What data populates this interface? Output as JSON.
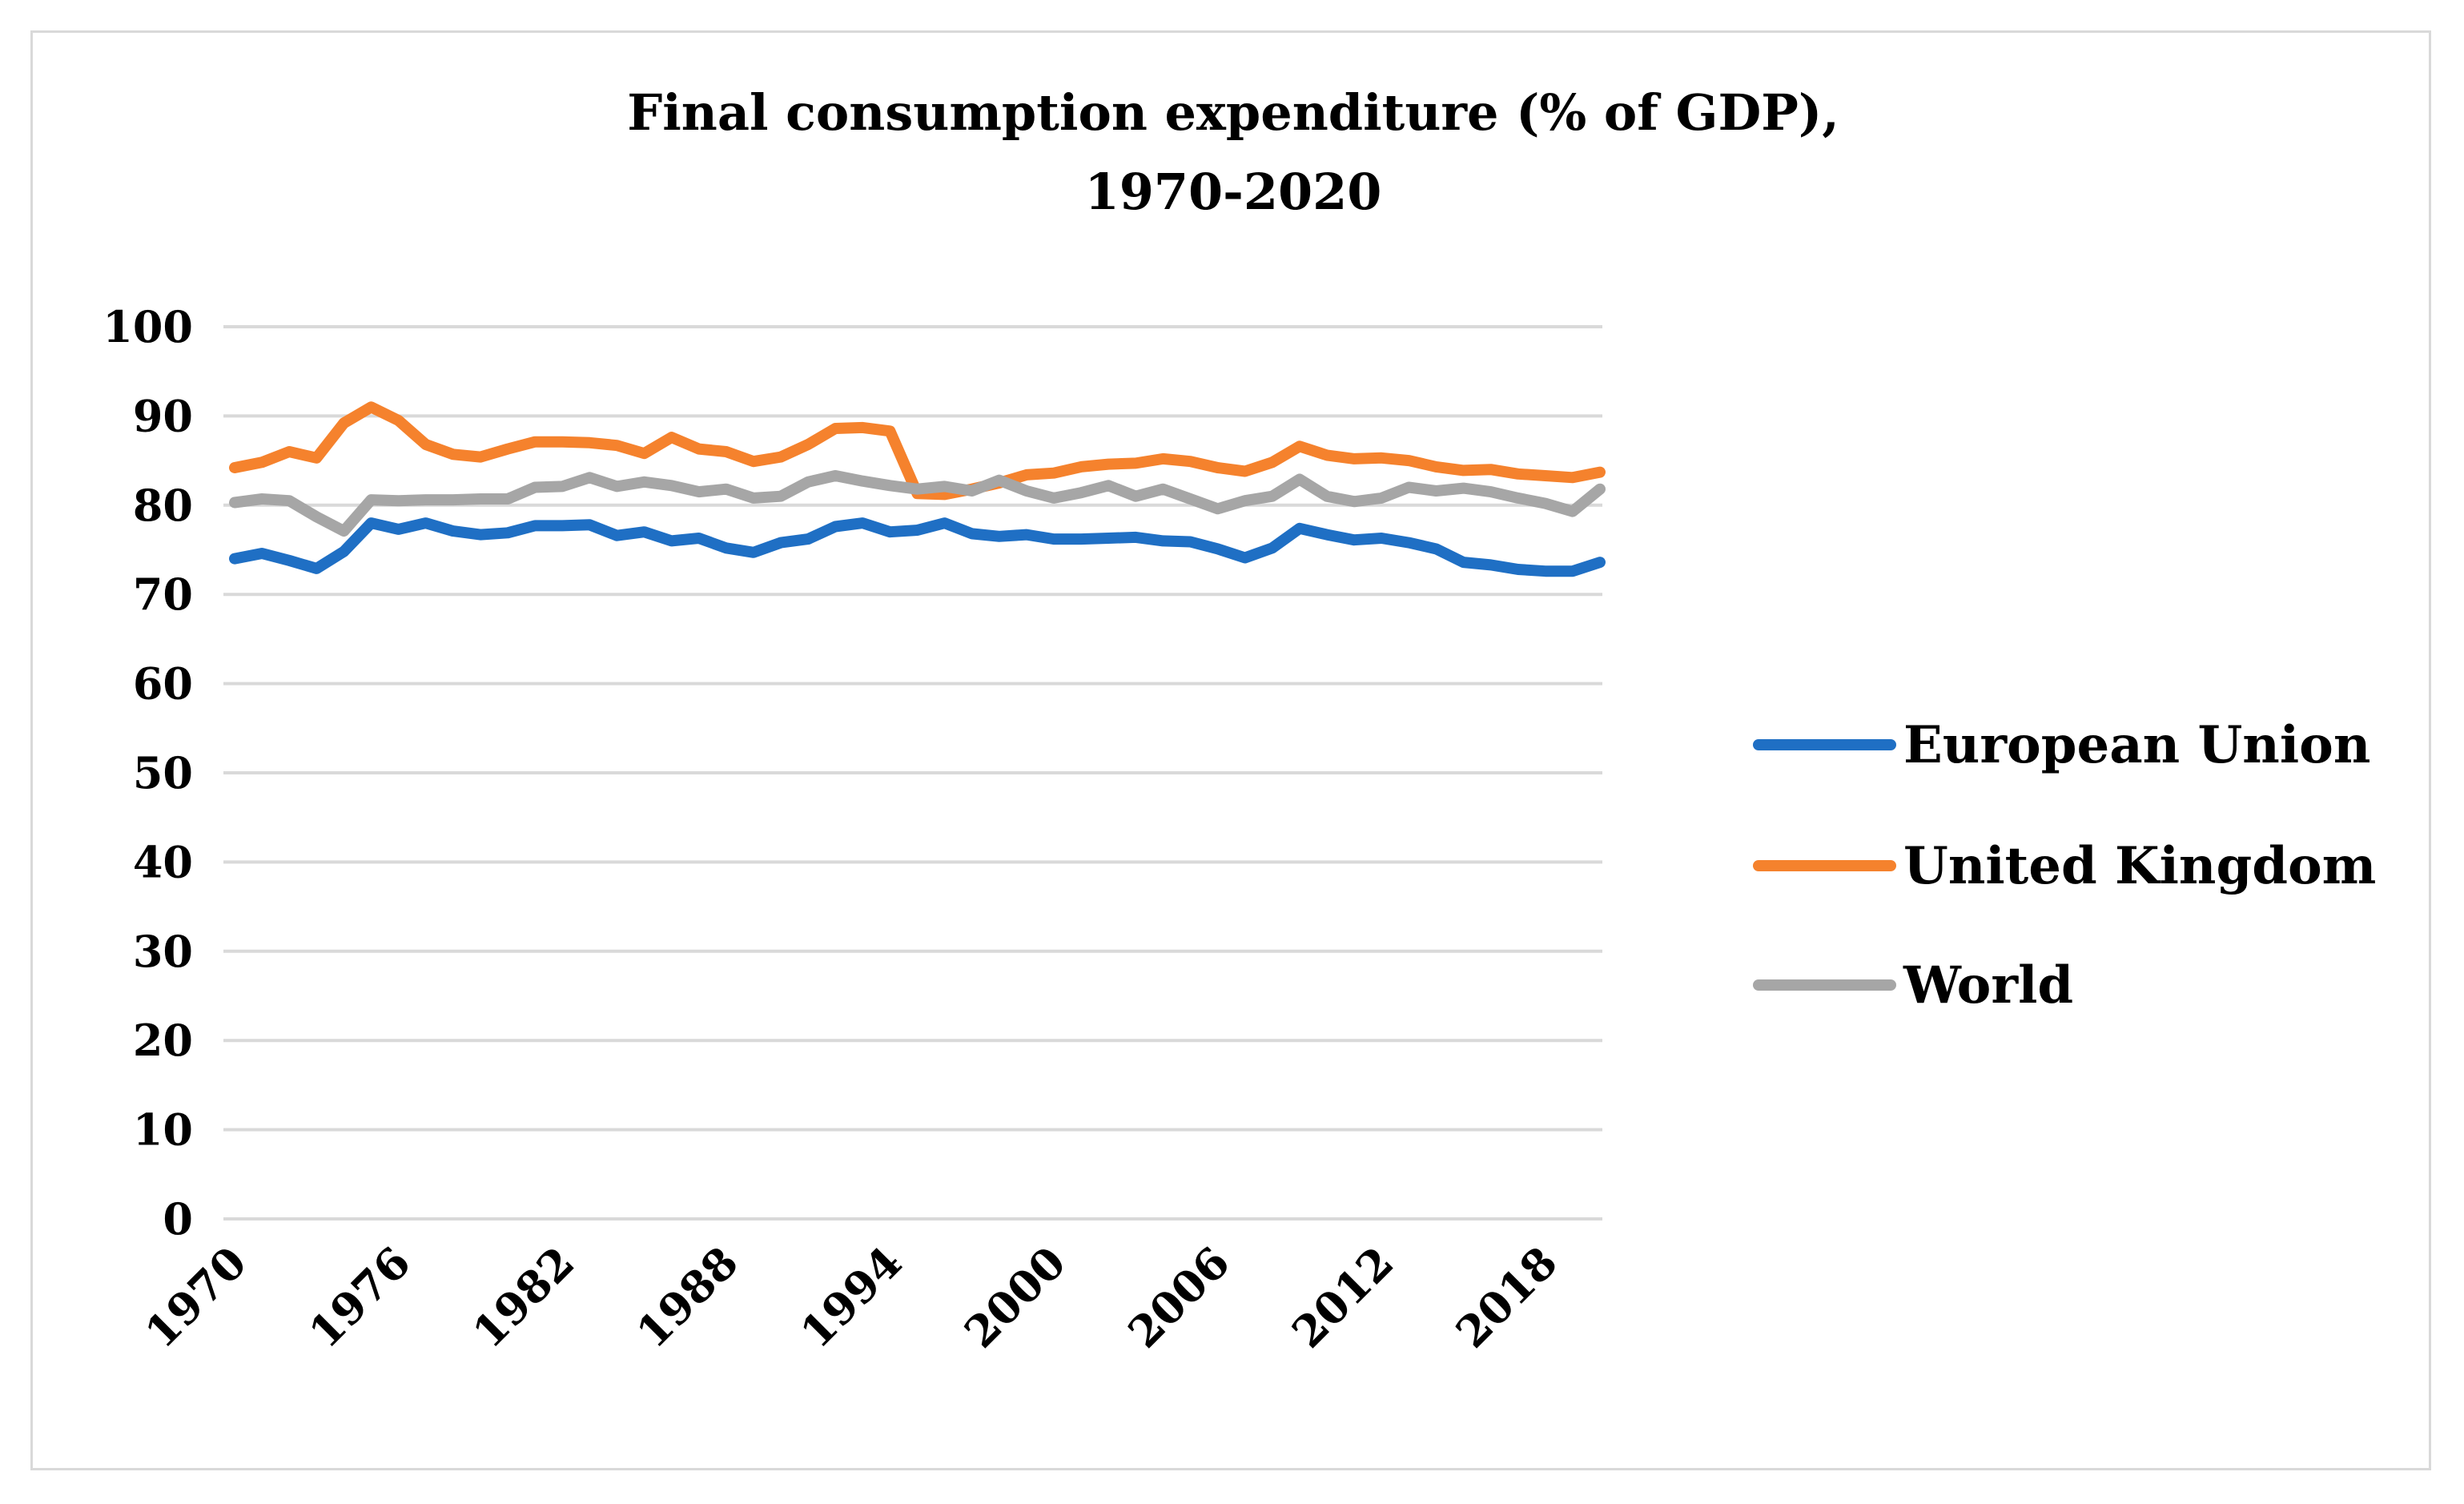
{
  "chart_data": {
    "type": "line",
    "title": "Final consumption expenditure (% of GDP),",
    "subtitle": "1970-2020",
    "xlabel": "",
    "ylabel": "",
    "ylim": [
      0,
      100
    ],
    "yticks": [
      "0",
      "10",
      "20",
      "30",
      "40",
      "50",
      "60",
      "70",
      "80",
      "90",
      "100"
    ],
    "xtick_labels": [
      "1970",
      "1976",
      "1982",
      "1988",
      "1994",
      "2000",
      "2006",
      "2012",
      "2018"
    ],
    "grid": true,
    "legend_position": "right",
    "x": [
      1970,
      1971,
      1972,
      1973,
      1974,
      1975,
      1976,
      1977,
      1978,
      1979,
      1980,
      1981,
      1982,
      1983,
      1984,
      1985,
      1986,
      1987,
      1988,
      1989,
      1990,
      1991,
      1992,
      1993,
      1994,
      1995,
      1996,
      1997,
      1998,
      1999,
      2000,
      2001,
      2002,
      2003,
      2004,
      2005,
      2006,
      2007,
      2008,
      2009,
      2010,
      2011,
      2012,
      2013,
      2014,
      2015,
      2016,
      2017,
      2018,
      2019,
      2020
    ],
    "series": [
      {
        "name": "European Union",
        "color": "#1f6fc4",
        "values": [
          74.0,
          74.6,
          73.8,
          72.9,
          74.8,
          78.0,
          77.3,
          78.0,
          77.1,
          76.7,
          76.9,
          77.7,
          77.7,
          77.8,
          76.6,
          77.0,
          76.0,
          76.3,
          75.2,
          74.7,
          75.8,
          76.2,
          77.6,
          78.0,
          77.0,
          77.2,
          78.0,
          76.8,
          76.5,
          76.7,
          76.2,
          76.2,
          76.3,
          76.4,
          76.0,
          75.9,
          75.1,
          74.1,
          75.2,
          77.4,
          76.7,
          76.1,
          76.3,
          75.8,
          75.1,
          73.6,
          73.3,
          72.8,
          72.6,
          72.6,
          73.6
        ]
      },
      {
        "name": "United Kingdom",
        "color": "#f5822d",
        "values": [
          84.2,
          84.8,
          86.0,
          85.3,
          89.2,
          91.0,
          89.5,
          86.8,
          85.7,
          85.4,
          86.3,
          87.1,
          87.1,
          87.0,
          86.7,
          85.8,
          87.6,
          86.3,
          86.0,
          84.9,
          85.4,
          86.8,
          88.6,
          88.7,
          88.3,
          81.3,
          81.2,
          81.8,
          82.5,
          83.4,
          83.6,
          84.3,
          84.6,
          84.7,
          85.2,
          84.9,
          84.2,
          83.8,
          84.8,
          86.6,
          85.6,
          85.2,
          85.3,
          85.0,
          84.3,
          83.9,
          84.0,
          83.5,
          83.3,
          83.1,
          83.7
        ]
      },
      {
        "name": "World",
        "color": "#a6a6a6",
        "values": [
          80.3,
          80.7,
          80.5,
          78.7,
          77.1,
          80.6,
          80.5,
          80.6,
          80.6,
          80.7,
          80.7,
          82.0,
          82.1,
          83.1,
          82.1,
          82.6,
          82.2,
          81.5,
          81.8,
          80.8,
          81.0,
          82.6,
          83.3,
          82.7,
          82.2,
          81.8,
          82.1,
          81.6,
          82.8,
          81.6,
          80.8,
          81.4,
          82.2,
          81.0,
          81.8,
          80.7,
          79.6,
          80.5,
          81.0,
          82.9,
          81.0,
          80.4,
          80.8,
          82.0,
          81.6,
          81.9,
          81.5,
          80.8,
          80.2,
          79.3,
          81.8
        ]
      }
    ]
  }
}
